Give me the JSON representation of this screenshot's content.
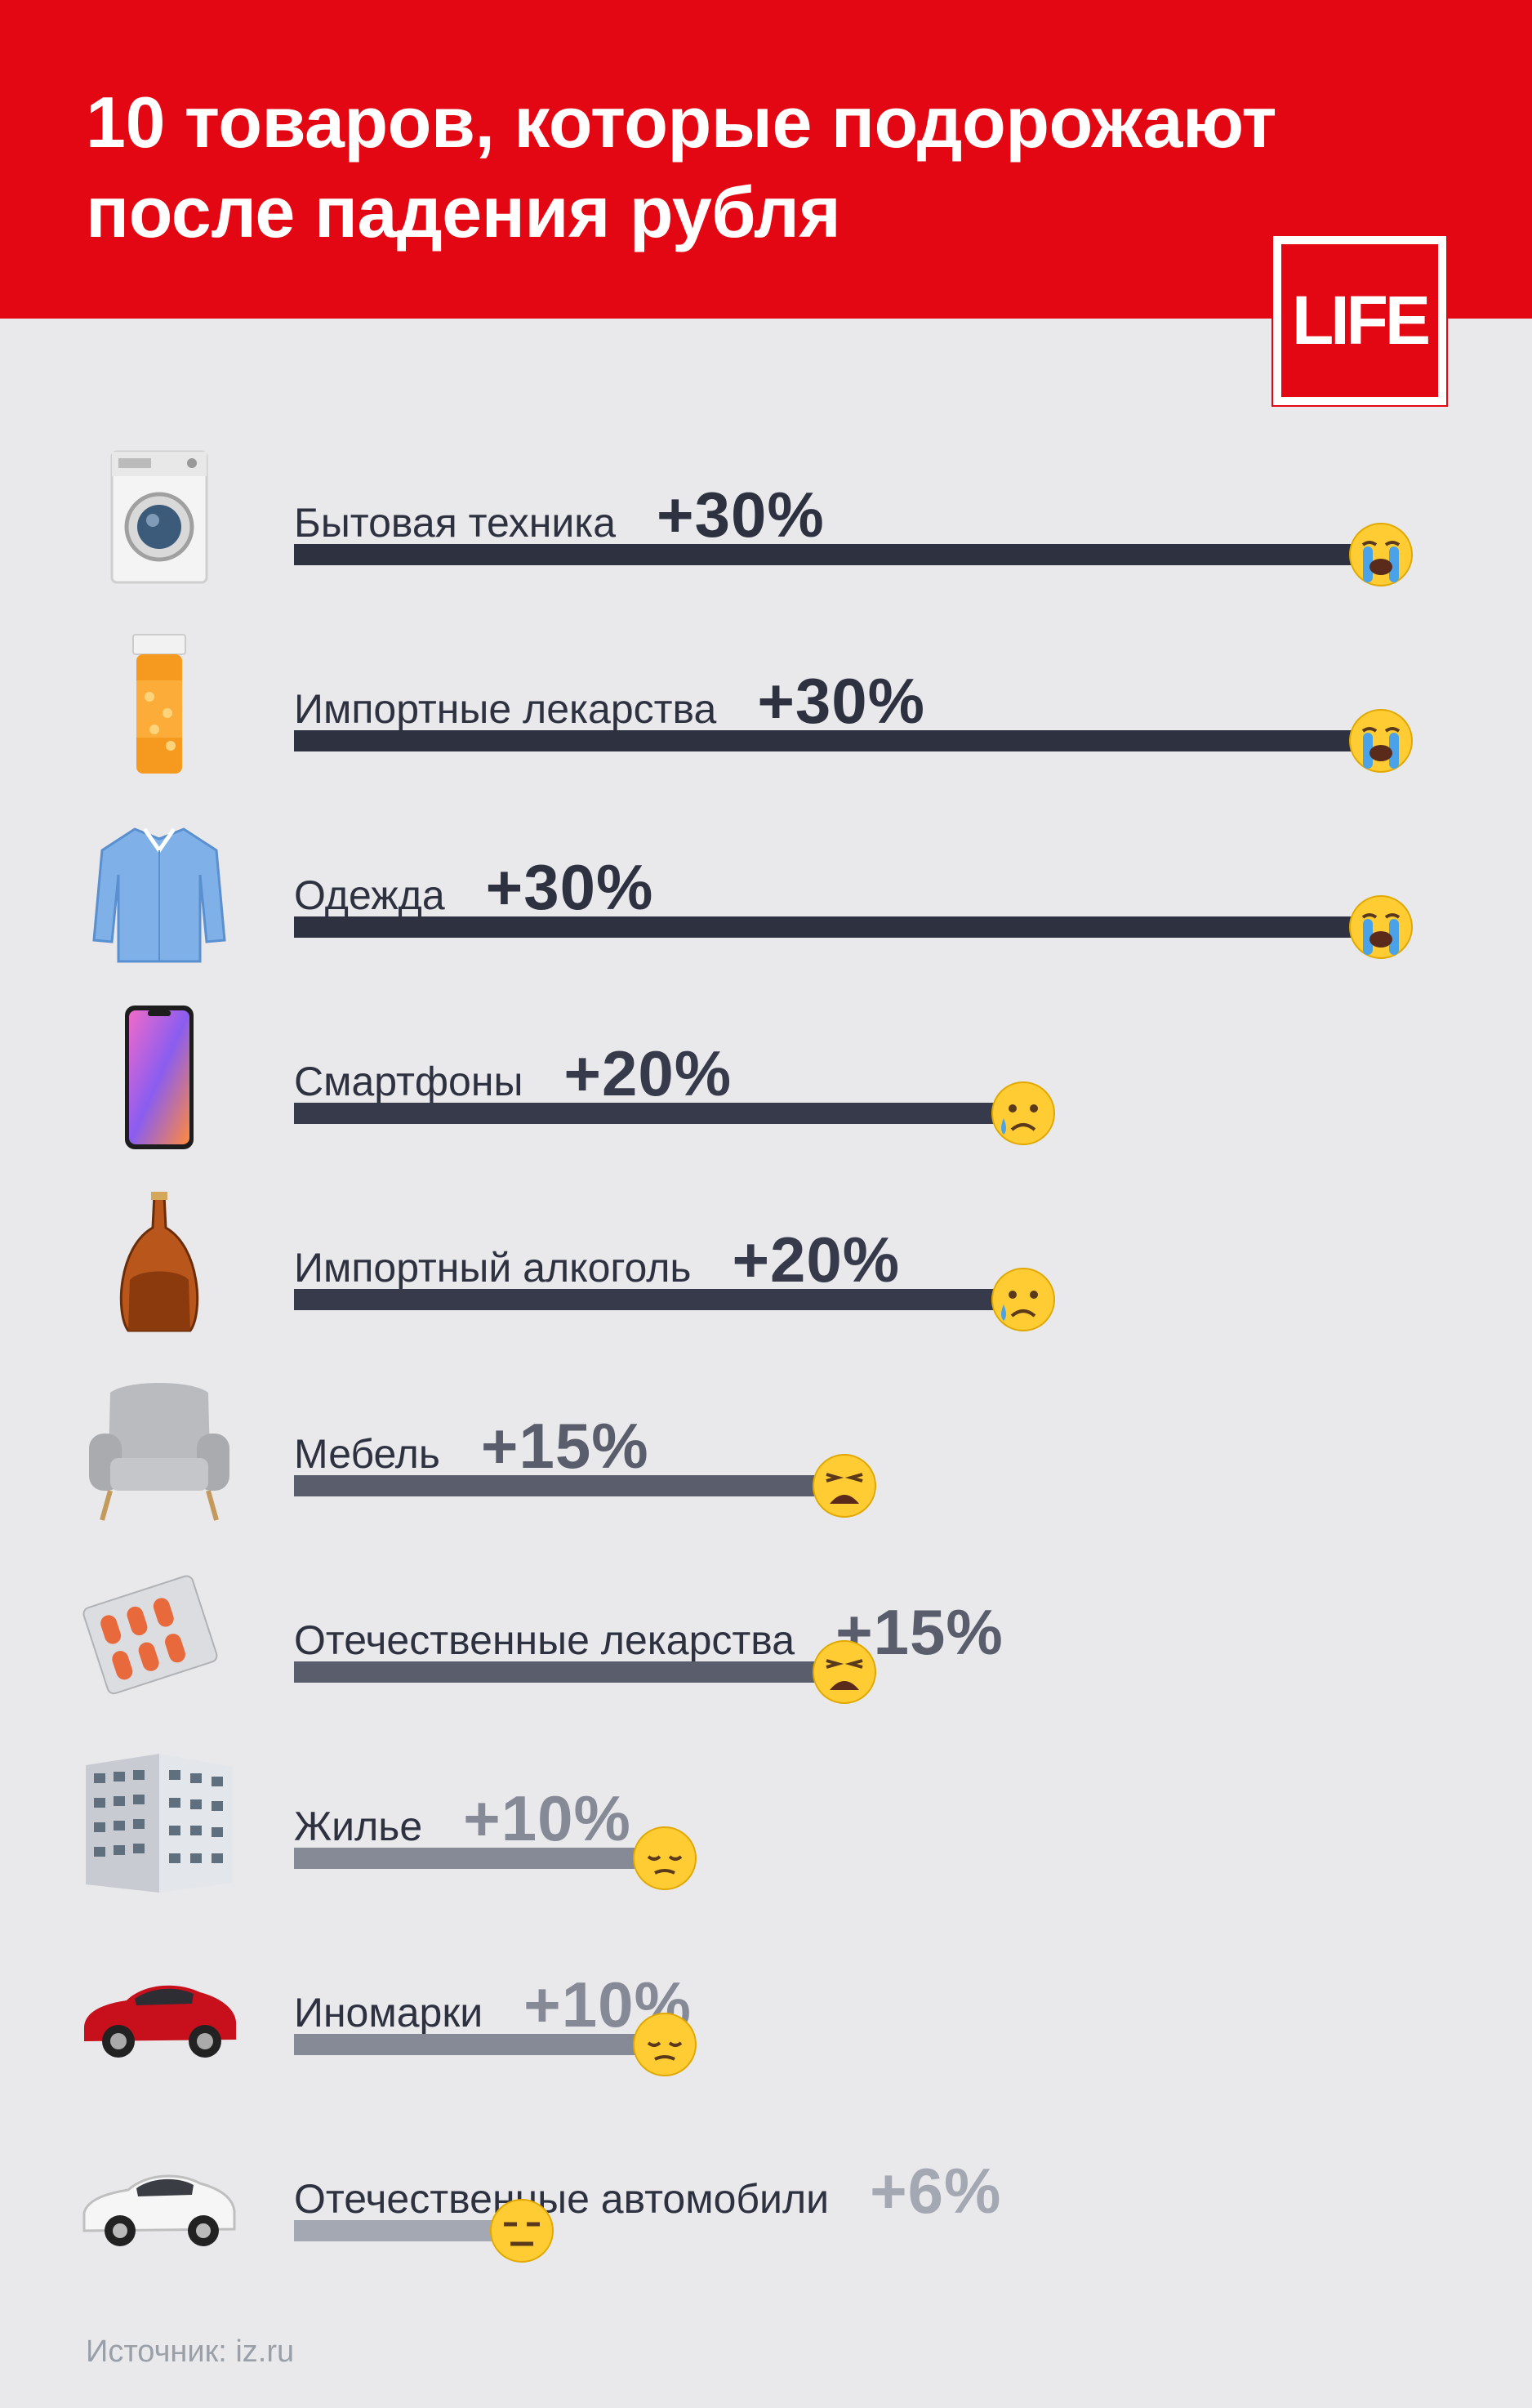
{
  "title": "10 товаров, которые подорожают после падения рубля",
  "logo": "LIFE",
  "source": {
    "label": "Источник:",
    "value": "iz.ru"
  },
  "colors": {
    "header": "#e30613",
    "background": "#e9e9ec"
  },
  "chart_data": {
    "type": "bar",
    "orientation": "horizontal",
    "title": "10 товаров, которые подорожают после падения рубля",
    "value_unit": "%",
    "xlim": [
      0,
      30
    ],
    "categories": [
      "Бытовая техника",
      "Импортные лекарства",
      "Одежда",
      "Смартфоны",
      "Импортный алкоголь",
      "Мебель",
      "Отечественные лекарства",
      "Жилье",
      "Иномарки",
      "Отечественные автомобили"
    ],
    "values": [
      30,
      30,
      30,
      20,
      20,
      15,
      15,
      10,
      10,
      6
    ],
    "value_labels": [
      "+30%",
      "+30%",
      "+30%",
      "+20%",
      "+20%",
      "+15%",
      "+15%",
      "+10%",
      "+10%",
      "+6%"
    ],
    "bar_colors": [
      "#2d3140",
      "#2d3140",
      "#2d3140",
      "#363a4a",
      "#363a4a",
      "#5a5e6c",
      "#5a5e6c",
      "#868a96",
      "#868a96",
      "#a4a8b2"
    ],
    "emoji": [
      "loudly-crying-face",
      "loudly-crying-face",
      "loudly-crying-face",
      "crying-face",
      "crying-face",
      "weary-face",
      "weary-face",
      "pensive-face",
      "pensive-face",
      "expressionless-face"
    ],
    "icons": [
      "washing-machine-icon",
      "pill-bottle-icon",
      "shirt-icon",
      "smartphone-icon",
      "cognac-bottle-icon",
      "armchair-icon",
      "pill-blister-icon",
      "apartment-building-icon",
      "red-car-icon",
      "white-car-icon"
    ]
  }
}
